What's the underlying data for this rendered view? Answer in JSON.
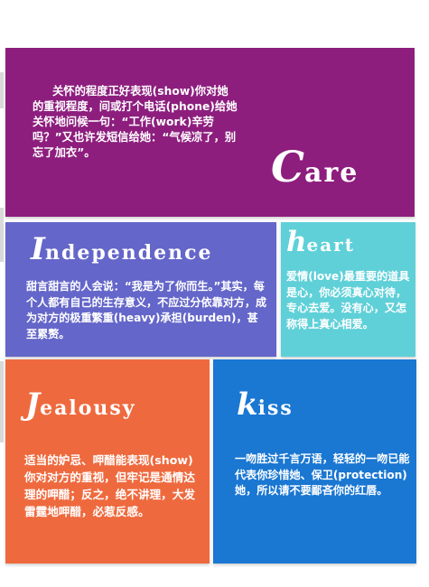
{
  "colors": {
    "care": "#8d1e7e",
    "independence": "#6466c9",
    "heart": "#5fd0d8",
    "jealousy": "#ee6a3e",
    "kiss": "#1a77d2"
  },
  "care": {
    "heading_initial": "C",
    "heading_rest": "are",
    "body": "关怀的程度正好表现(show)你对她的重视程度，间或打个电话(phone)给她关怀地问候一句：“工作(work)辛劳吗？”又也许发短信给她：“气候凉了，别忘了加衣”。"
  },
  "independence": {
    "heading_initial": "I",
    "heading_rest": "ndependence",
    "body": "甜言甜言的人会说：“我是为了你而生。”其实，每个人都有自己的生存意义，不应过分依靠对方，成为对方的极重繁重(heavy)承担(burden)，甚至累赘。"
  },
  "heart": {
    "heading_initial": "h",
    "heading_rest": "eart",
    "body": "爱情(love)最重要的道具是心，你必须真心对待，专心去爱。没有心，又怎称得上真心相爱。"
  },
  "jealousy": {
    "heading_initial": "J",
    "heading_rest": "ealousy",
    "body": "适当的妒忌、呷醋能表现(show)你对对方的重视，但牢记是通情达理的呷醋；反之，绝不讲理，大发雷霆地呷醋，必惹反感。"
  },
  "kiss": {
    "heading_initial": "k",
    "heading_rest": "iss",
    "body": "一吻胜过千言万语，轻轻的一吻已能代表你珍惜她、保卫(protection)她，所以请不要鄙吝你的红唇。"
  }
}
